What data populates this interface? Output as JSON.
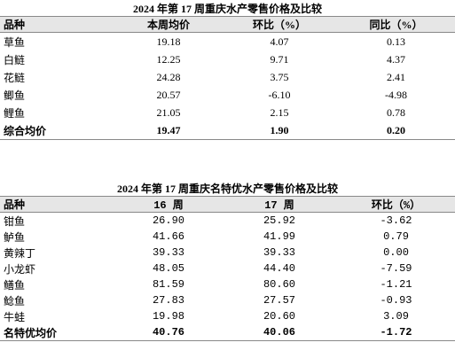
{
  "tables": [
    {
      "title": "2024 年第 17 周重庆水产零售价格及比较",
      "header": [
        "品种",
        "本周均价",
        "环比（%）",
        "同比（%）"
      ],
      "rows": [
        [
          "草鱼",
          "19.18",
          "4.07",
          "0.13"
        ],
        [
          "白鲢",
          "12.25",
          "9.71",
          "4.37"
        ],
        [
          "花鲢",
          "24.28",
          "3.75",
          "2.41"
        ],
        [
          "鲫鱼",
          "20.57",
          "-6.10",
          "-4.98"
        ],
        [
          "鲤鱼",
          "21.05",
          "2.15",
          "0.78"
        ]
      ],
      "total": [
        "综合均价",
        "19.47",
        "1.90",
        "0.20"
      ]
    },
    {
      "title": "2024 年第 17 周重庆名特优水产零售价格及比较",
      "header": [
        "品种",
        "16 周",
        "17 周",
        "环比（%）"
      ],
      "rows": [
        [
          "钳鱼",
          "26.90",
          "25.92",
          "-3.62"
        ],
        [
          "鲈鱼",
          "41.66",
          "41.99",
          "0.79"
        ],
        [
          "黄辣丁",
          "39.33",
          "39.33",
          "0.00"
        ],
        [
          "小龙虾",
          "48.05",
          "44.40",
          "-7.59"
        ],
        [
          "鳝鱼",
          "81.59",
          "80.60",
          "-1.21"
        ],
        [
          "鲶鱼",
          "27.83",
          "27.57",
          "-0.93"
        ],
        [
          "牛蛙",
          "19.98",
          "20.60",
          "3.09"
        ]
      ],
      "total": [
        "名特优均价",
        "40.76",
        "40.06",
        "-1.72"
      ]
    }
  ]
}
